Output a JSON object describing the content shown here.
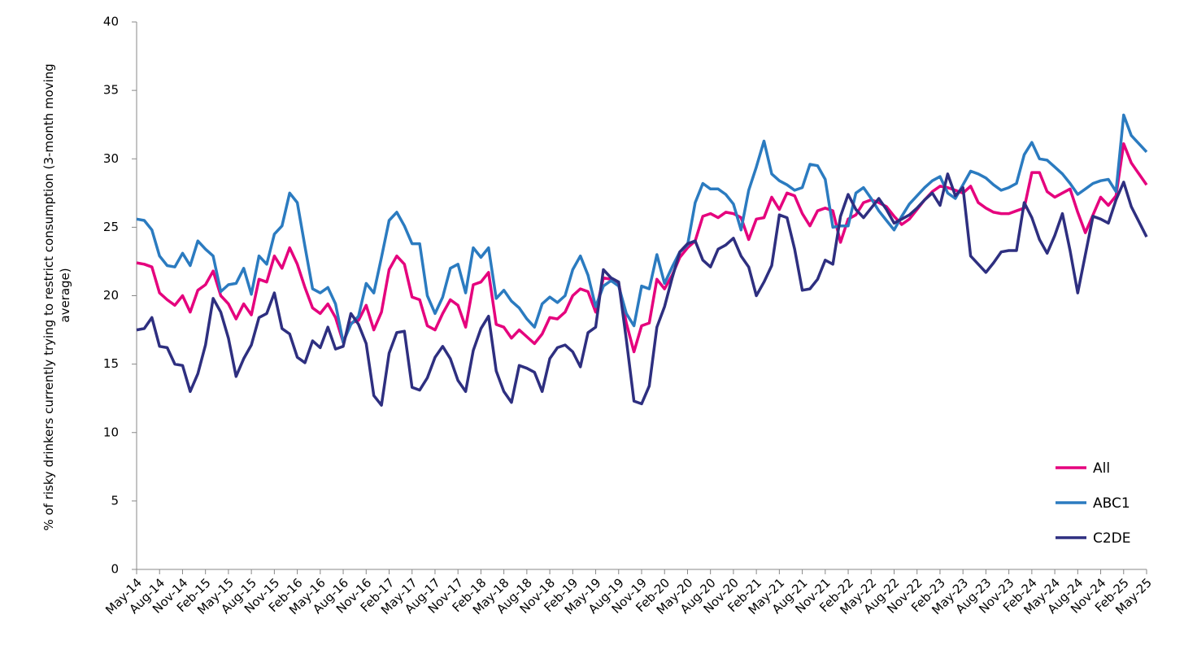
{
  "chart_data": {
    "type": "line",
    "y_label": "% of risky drinkers currently trying to restrict consumption (3-month moving average)",
    "categories": [
      "May-14",
      null,
      null,
      "Aug-14",
      null,
      null,
      "Nov-14",
      null,
      null,
      "Feb-15",
      null,
      null,
      "May-15",
      null,
      null,
      "Aug-15",
      null,
      null,
      "Nov-15",
      null,
      null,
      "Feb-16",
      null,
      null,
      "May-16",
      null,
      null,
      "Aug-16",
      null,
      null,
      "Nov-16",
      null,
      null,
      "Feb-17",
      null,
      null,
      "May-17",
      null,
      null,
      "Aug-17",
      null,
      null,
      "Nov-17",
      null,
      null,
      "Feb-18",
      null,
      null,
      "May-18",
      null,
      null,
      "Aug-18",
      null,
      null,
      "Nov-18",
      null,
      null,
      "Feb-19",
      null,
      null,
      "May-19",
      null,
      null,
      "Aug-19",
      null,
      null,
      "Nov-19",
      null,
      null,
      "Feb-20",
      null,
      null,
      "May-20",
      null,
      null,
      "Aug-20",
      null,
      null,
      "Nov-20",
      null,
      null,
      "Feb-21",
      null,
      null,
      "May-21",
      null,
      null,
      "Aug-21",
      null,
      null,
      "Nov-21",
      null,
      null,
      "Feb-22",
      null,
      null,
      "May-22",
      null,
      null,
      "Aug-22",
      null,
      null,
      "Nov-22",
      null,
      null,
      "Feb-23",
      null,
      null,
      "May-23",
      null,
      null,
      "Aug-23",
      null,
      null,
      "Nov-23",
      null,
      null,
      "Feb-24",
      null,
      null,
      "May-24",
      null,
      null,
      "Aug-24",
      null,
      null,
      "Nov-24",
      null,
      null,
      "Feb-25",
      null,
      null,
      "May-25"
    ],
    "series": [
      {
        "name": "All",
        "color": "#e5007d",
        "values": [
          22.4,
          22.3,
          22.1,
          20.2,
          19.7,
          19.3,
          20.0,
          18.8,
          20.4,
          20.8,
          21.8,
          20.0,
          19.4,
          18.3,
          19.4,
          18.6,
          21.2,
          21.0,
          22.9,
          22.0,
          23.5,
          22.3,
          20.6,
          19.1,
          18.7,
          19.4,
          18.4,
          16.6,
          18.0,
          18.2,
          19.3,
          17.5,
          18.8,
          21.9,
          22.9,
          22.3,
          19.9,
          19.7,
          17.8,
          17.5,
          18.7,
          19.7,
          19.3,
          17.7,
          20.8,
          21.0,
          21.7,
          17.9,
          17.7,
          16.9,
          17.5,
          17.0,
          16.5,
          17.2,
          18.4,
          18.3,
          18.8,
          20.0,
          20.5,
          20.3,
          18.8,
          21.3,
          21.2,
          20.9,
          18.0,
          15.9,
          17.8,
          18.0,
          21.2,
          20.5,
          21.5,
          22.8,
          23.5,
          24.0,
          25.8,
          26.0,
          25.7,
          26.1,
          26.0,
          25.7,
          24.1,
          25.6,
          25.7,
          27.2,
          26.3,
          27.5,
          27.3,
          26.0,
          25.1,
          26.2,
          26.4,
          26.2,
          23.9,
          25.6,
          25.9,
          26.8,
          27.0,
          26.8,
          26.5,
          25.8,
          25.2,
          25.6,
          26.3,
          27.0,
          27.6,
          28.0,
          27.9,
          27.7,
          27.5,
          28.0,
          26.8,
          26.4,
          26.1,
          26.0,
          26.0,
          26.2,
          26.4,
          29.0,
          29.0,
          27.6,
          27.2,
          27.5,
          27.8,
          26.1,
          24.6,
          25.9,
          27.2,
          26.6,
          27.3,
          31.1,
          29.7,
          28.9,
          28.1
        ]
      },
      {
        "name": "ABC1",
        "color": "#2b7bc0",
        "values": [
          25.6,
          25.5,
          24.8,
          22.9,
          22.2,
          22.1,
          23.1,
          22.2,
          24.0,
          23.4,
          22.9,
          20.3,
          20.8,
          20.9,
          22.0,
          20.1,
          22.9,
          22.3,
          24.5,
          25.1,
          27.5,
          26.8,
          23.6,
          20.5,
          20.2,
          20.6,
          19.4,
          16.6,
          17.9,
          18.5,
          20.9,
          20.2,
          22.8,
          25.5,
          26.1,
          25.1,
          23.8,
          23.8,
          20.0,
          18.7,
          19.9,
          22.0,
          22.3,
          20.2,
          23.5,
          22.8,
          23.5,
          19.8,
          20.4,
          19.6,
          19.1,
          18.3,
          17.7,
          19.4,
          19.9,
          19.5,
          20.0,
          21.9,
          22.9,
          21.5,
          19.2,
          20.7,
          21.1,
          20.7,
          18.7,
          17.8,
          20.7,
          20.5,
          23.0,
          20.9,
          22.1,
          23.2,
          23.7,
          26.8,
          28.2,
          27.8,
          27.8,
          27.4,
          26.7,
          24.8,
          27.7,
          29.4,
          31.3,
          28.9,
          28.4,
          28.1,
          27.7,
          27.9,
          29.6,
          29.5,
          28.5,
          25.0,
          25.1,
          25.1,
          27.5,
          27.9,
          27.1,
          26.2,
          25.5,
          24.8,
          25.8,
          26.7,
          27.3,
          27.9,
          28.4,
          28.7,
          27.5,
          27.1,
          28.1,
          29.1,
          28.9,
          28.6,
          28.1,
          27.7,
          27.9,
          28.2,
          30.3,
          31.2,
          30.0,
          29.9,
          29.4,
          28.9,
          28.2,
          27.4,
          27.8,
          28.2,
          28.4,
          28.5,
          27.6,
          33.2,
          31.7,
          31.1,
          30.5
        ]
      },
      {
        "name": "C2DE",
        "color": "#2e2f80",
        "values": [
          17.5,
          17.6,
          18.4,
          16.3,
          16.2,
          15.0,
          14.9,
          13.0,
          14.3,
          16.4,
          19.8,
          18.8,
          16.9,
          14.1,
          15.4,
          16.4,
          18.4,
          18.7,
          20.2,
          17.6,
          17.2,
          15.5,
          15.1,
          16.7,
          16.2,
          17.7,
          16.1,
          16.3,
          18.7,
          17.9,
          16.5,
          12.7,
          12.0,
          15.8,
          17.3,
          17.4,
          13.3,
          13.1,
          14.0,
          15.5,
          16.3,
          15.4,
          13.8,
          13.0,
          16.0,
          17.6,
          18.5,
          14.5,
          13.0,
          12.2,
          14.9,
          14.7,
          14.4,
          13.0,
          15.4,
          16.2,
          16.4,
          15.9,
          14.8,
          17.3,
          17.7,
          21.9,
          21.3,
          21.0,
          16.8,
          12.3,
          12.1,
          13.4,
          17.7,
          19.2,
          21.3,
          23.2,
          23.8,
          24.0,
          22.6,
          22.1,
          23.4,
          23.7,
          24.2,
          22.9,
          22.1,
          20.0,
          21.0,
          22.2,
          25.9,
          25.7,
          23.4,
          20.4,
          20.5,
          21.2,
          22.6,
          22.3,
          25.8,
          27.4,
          26.3,
          25.7,
          26.4,
          27.1,
          26.3,
          25.3,
          25.6,
          25.9,
          26.4,
          27.0,
          27.5,
          26.6,
          28.9,
          27.3,
          27.9,
          22.9,
          22.3,
          21.7,
          22.4,
          23.2,
          23.3,
          23.3,
          26.8,
          25.7,
          24.1,
          23.1,
          24.4,
          26.0,
          23.3,
          20.2,
          23.0,
          25.8,
          25.6,
          25.3,
          27.0,
          28.3,
          26.5,
          25.4,
          24.3
        ]
      }
    ],
    "ylim": [
      0,
      40
    ],
    "yticks": [
      0,
      5,
      10,
      15,
      20,
      25,
      30,
      35,
      40
    ],
    "grid": false,
    "legend": "lower right"
  }
}
